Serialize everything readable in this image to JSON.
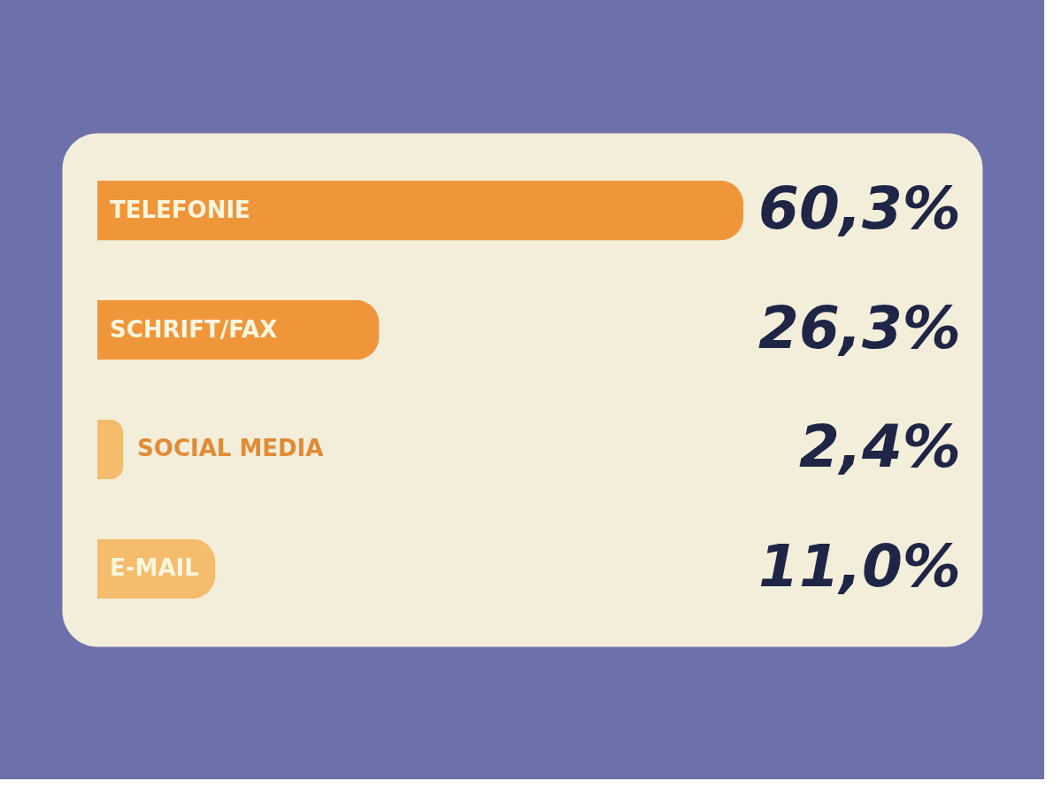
{
  "chart_data": {
    "type": "bar",
    "orientation": "horizontal",
    "categories": [
      "TELEFONIE",
      "SCHRIFT/FAX",
      "SOCIAL MEDIA",
      "E-MAIL"
    ],
    "values": [
      60.3,
      26.3,
      2.4,
      11.0
    ],
    "colors": [
      "#f0963a",
      "#f0963a",
      "#f4bc6c",
      "#f4bc6c"
    ],
    "value_labels": [
      "60,3%",
      "26,3%",
      "2,4%",
      "11,0%"
    ]
  }
}
